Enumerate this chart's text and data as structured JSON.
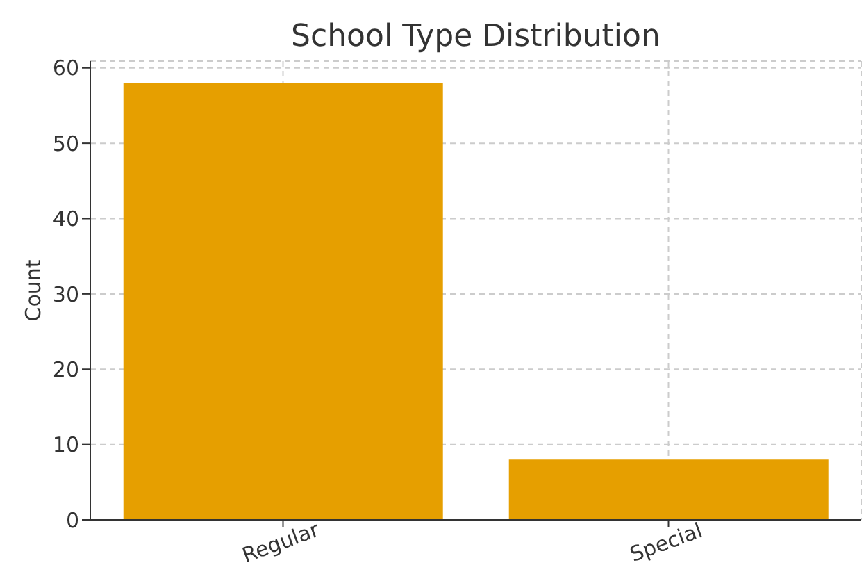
{
  "chart_data": {
    "type": "bar",
    "title": "School Type Distribution",
    "ylabel": "Count",
    "categories": [
      "Regular",
      "Special"
    ],
    "values": [
      58,
      8
    ],
    "color": "#e69f00",
    "ylim": [
      0,
      60.9
    ],
    "yticks": [
      0,
      10,
      20,
      30,
      40,
      50,
      60
    ],
    "grid": true
  }
}
